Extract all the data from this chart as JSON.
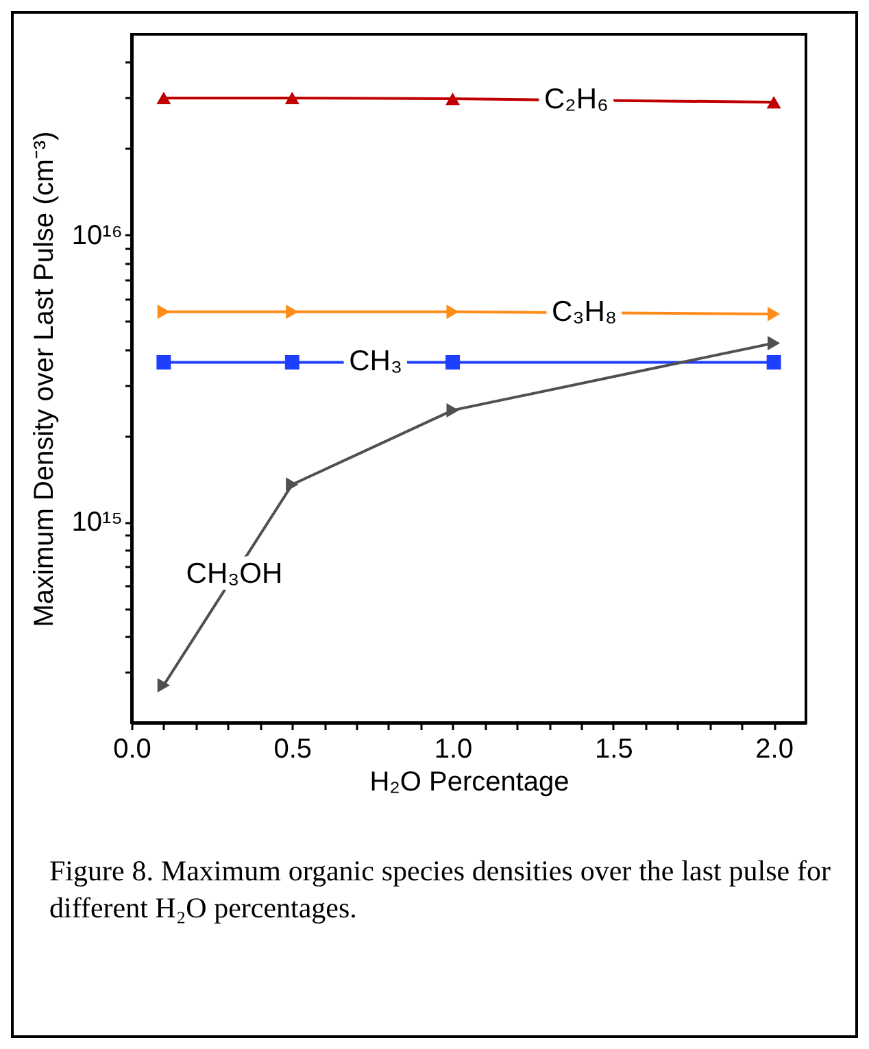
{
  "chart_data": {
    "type": "line",
    "xlabel": "H₂O Percentage",
    "ylabel": "Maximum Density over Last Pulse (cm⁻³)",
    "log": true,
    "x": [
      0.1,
      0.5,
      1.0,
      2.0
    ],
    "xlim": [
      0,
      2.1
    ],
    "xticks": [
      {
        "value": 0,
        "label": "0.0"
      },
      {
        "value": 0.1,
        "label": null
      },
      {
        "value": 0.2,
        "label": null
      },
      {
        "value": 0.3,
        "label": null
      },
      {
        "value": 0.4,
        "label": null
      },
      {
        "value": 0.5,
        "label": "0.5"
      },
      {
        "value": 0.6,
        "label": null
      },
      {
        "value": 0.7,
        "label": null
      },
      {
        "value": 0.8,
        "label": null
      },
      {
        "value": 0.9,
        "label": null
      },
      {
        "value": 1,
        "label": "1.0"
      },
      {
        "value": 1.1,
        "label": null
      },
      {
        "value": 1.2,
        "label": null
      },
      {
        "value": 1.3,
        "label": null
      },
      {
        "value": 1.4,
        "label": null
      },
      {
        "value": 1.5,
        "label": "1.5"
      },
      {
        "value": 1.6,
        "label": null
      },
      {
        "value": 1.7,
        "label": null
      },
      {
        "value": 1.8,
        "label": null
      },
      {
        "value": 1.9,
        "label": null
      },
      {
        "value": 2,
        "label": "2.0"
      }
    ],
    "ylim": [
      200000000000000.0,
      5e+16
    ],
    "yticks": [
      {
        "value": 300000000000000.0,
        "label": null
      },
      {
        "value": 400000000000000.0,
        "label": null
      },
      {
        "value": 500000000000000.0,
        "label": null
      },
      {
        "value": 600000000000000.0,
        "label": null
      },
      {
        "value": 700000000000000.0,
        "label": null
      },
      {
        "value": 800000000000000.0,
        "label": null
      },
      {
        "value": 900000000000000.0,
        "label": null
      },
      {
        "value": 1000000000000000.0,
        "label": "10¹⁵"
      },
      {
        "value": 2000000000000000.0,
        "label": null
      },
      {
        "value": 3000000000000000.0,
        "label": null
      },
      {
        "value": 4000000000000000.0,
        "label": null
      },
      {
        "value": 5000000000000000.0,
        "label": null
      },
      {
        "value": 6000000000000000.0,
        "label": null
      },
      {
        "value": 7000000000000000.0,
        "label": null
      },
      {
        "value": 8000000000000000.0,
        "label": null
      },
      {
        "value": 9000000000000000.0,
        "label": null
      },
      {
        "value": 1e+16,
        "label": "10¹⁶"
      },
      {
        "value": 2e+16,
        "label": null
      },
      {
        "value": 3e+16,
        "label": null
      },
      {
        "value": 4e+16,
        "label": null
      }
    ],
    "series": [
      {
        "name": "C₂H₆",
        "color": "#c00000",
        "marker": "triangle",
        "values": [
          3e+16,
          3e+16,
          2.98e+16,
          2.9e+16
        ]
      },
      {
        "name": "C₃H₈",
        "color": "#ff8c1a",
        "marker": "triangle-right",
        "values": [
          5400000000000000.0,
          5400000000000000.0,
          5400000000000000.0,
          5300000000000000.0
        ]
      },
      {
        "name": "CH₃",
        "color": "#1f3fff",
        "marker": "square",
        "values": [
          3600000000000000.0,
          3600000000000000.0,
          3600000000000000.0,
          3600000000000000.0
        ]
      },
      {
        "name": "CH₃OH",
        "color": "#505050",
        "marker": "triangle-right",
        "values": [
          270000000000000.0,
          1350000000000000.0,
          2450000000000000.0,
          4200000000000000.0
        ]
      }
    ],
    "annotations": [
      "Figure 8. Maximum organic species densities over the last pulse for different H₂O percentages."
    ]
  }
}
